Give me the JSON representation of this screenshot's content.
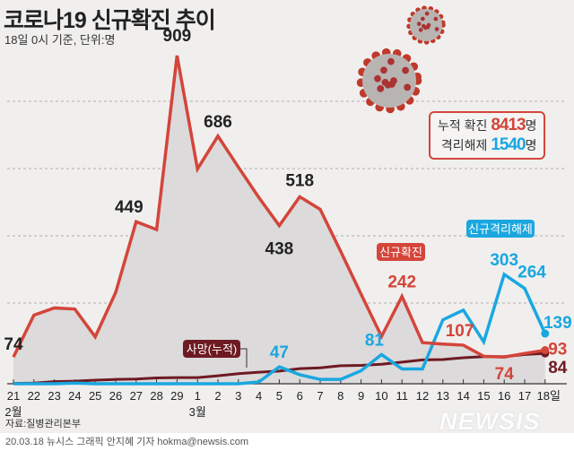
{
  "header": {
    "title": "코로나19 신규확진 추이",
    "subtitle": "18일 0시 기준, 단위:명"
  },
  "summary": {
    "cumulative_label": "누적 확진",
    "cumulative_value": "8413",
    "released_label": "격리해제",
    "released_value": "1540",
    "unit": "명"
  },
  "chart_data": {
    "type": "line",
    "categories": [
      "21",
      "22",
      "23",
      "24",
      "25",
      "26",
      "27",
      "28",
      "29",
      "1",
      "2",
      "3",
      "4",
      "5",
      "6",
      "7",
      "8",
      "9",
      "10",
      "11",
      "12",
      "13",
      "14",
      "15",
      "16",
      "17",
      "18일"
    ],
    "month_labels": [
      {
        "label": "2월",
        "at": "21"
      },
      {
        "label": "3월",
        "at": "1"
      }
    ],
    "series": [
      {
        "name": "신규확진",
        "color": "#d4453a",
        "fill": true,
        "values": [
          74,
          190,
          210,
          207,
          130,
          253,
          449,
          427,
          909,
          595,
          686,
          600,
          516,
          438,
          518,
          483,
          367,
          248,
          131,
          242,
          114,
          110,
          107,
          76,
          74,
          84,
          93
        ],
        "labeled": {
          "0": "74",
          "6": "449",
          "8": "909",
          "10": "686",
          "13": "438",
          "14": "518",
          "19": "242",
          "22": "107",
          "24": "74",
          "26": "93"
        }
      },
      {
        "name": "신규격리해제",
        "color": "#1aa7e0",
        "values": [
          0,
          0,
          0,
          2,
          0,
          0,
          0,
          0,
          0,
          0,
          0,
          0,
          5,
          47,
          25,
          12,
          12,
          36,
          81,
          41,
          41,
          177,
          204,
          116,
          303,
          264,
          139
        ],
        "labeled": {
          "13": "47",
          "18": "81",
          "24": "303",
          "25": "264",
          "26": "139"
        }
      },
      {
        "name": "사망(누적)",
        "color": "#6e1a22",
        "values": [
          1,
          2,
          6,
          7,
          10,
          12,
          13,
          16,
          17,
          17,
          22,
          28,
          32,
          35,
          42,
          44,
          50,
          51,
          54,
          60,
          66,
          67,
          72,
          75,
          75,
          81,
          84
        ],
        "labeled": {
          "26": "84"
        }
      }
    ],
    "ylim": [
      0,
      909
    ],
    "grid": true
  },
  "source": "자료:질병관리본부",
  "watermark": "NEWSIS",
  "footer": "20.03.18 뉴시스 그래픽 안지혜 기자 hokma@newsis.com"
}
